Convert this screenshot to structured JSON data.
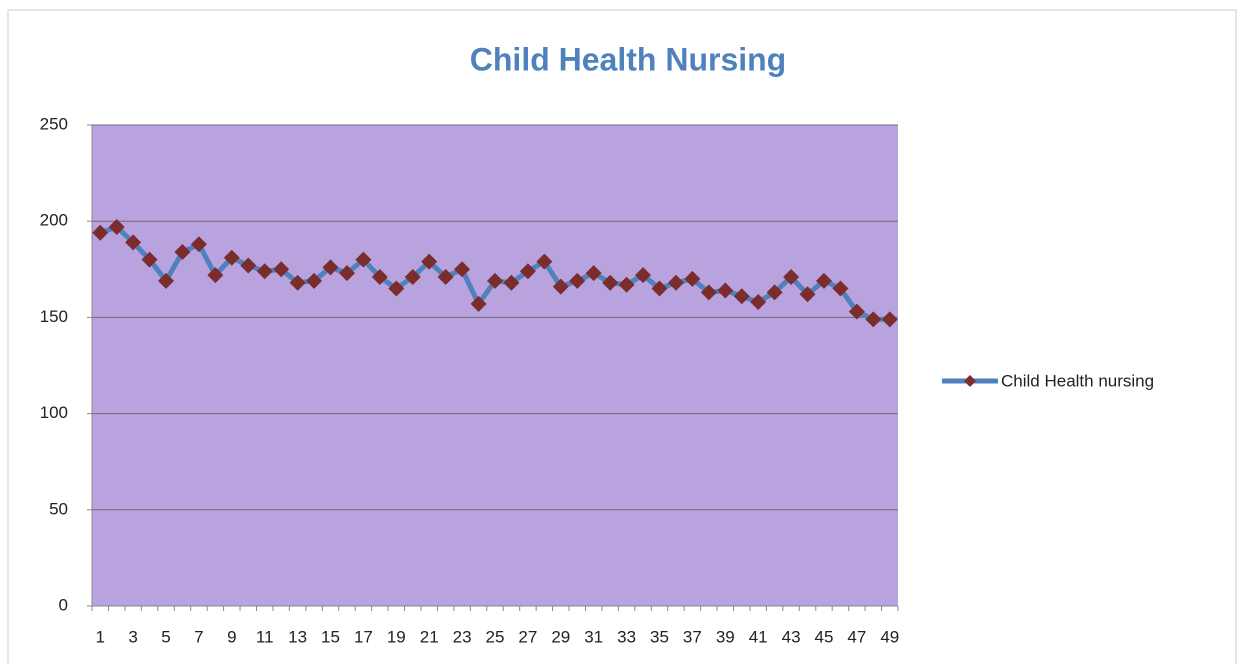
{
  "chart_data": {
    "type": "line",
    "title": "Child Health Nursing",
    "categories": [
      1,
      null,
      3,
      null,
      5,
      null,
      7,
      null,
      9,
      null,
      11,
      null,
      13,
      null,
      15,
      null,
      17,
      null,
      19,
      null,
      21,
      null,
      23,
      null,
      25,
      null,
      27,
      null,
      29,
      null,
      31,
      null,
      33,
      null,
      35,
      null,
      37,
      null,
      39,
      null,
      41,
      null,
      43,
      null,
      45,
      null,
      47,
      null,
      49
    ],
    "series": [
      {
        "name": "Child Health nursing",
        "color": "#4f81bd",
        "marker_color": "#7b2c2c",
        "values": [
          194,
          197,
          189,
          180,
          169,
          184,
          188,
          172,
          181,
          177,
          174,
          175,
          168,
          169,
          176,
          173,
          180,
          171,
          165,
          171,
          179,
          171,
          175,
          157,
          169,
          168,
          174,
          179,
          166,
          169,
          173,
          168,
          167,
          172,
          165,
          168,
          170,
          163,
          164,
          161,
          158,
          163,
          171,
          162,
          169,
          165,
          153,
          149,
          149
        ]
      }
    ],
    "ylim": [
      0,
      250
    ],
    "yticks": [
      0,
      50,
      100,
      150,
      200,
      250
    ],
    "grid": true,
    "legend": "right",
    "plot_background": "#b9a3df"
  }
}
